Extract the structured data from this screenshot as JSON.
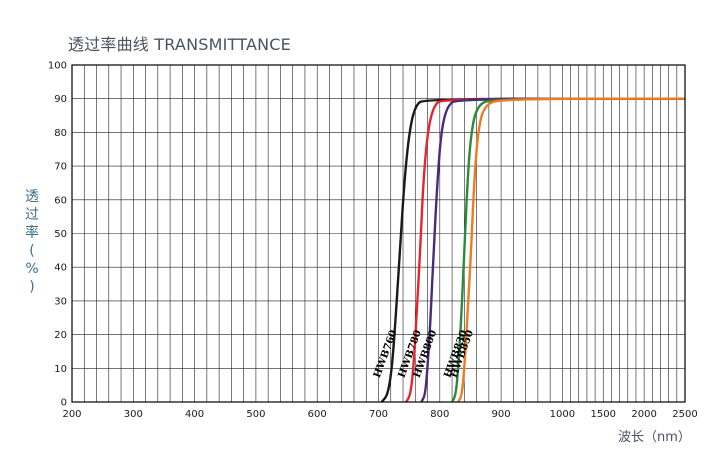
{
  "title": "透过率曲线 TRANSMITTANCE",
  "chart_data": {
    "type": "line",
    "title": "透过率曲线 TRANSMITTANCE",
    "ylabel": "透过率(%)",
    "ylabel_chars": [
      "透",
      "过",
      "率",
      "(",
      "%",
      ")"
    ],
    "xlabel": "波长（nm）",
    "xlim": [
      200,
      2500
    ],
    "ylim": [
      0,
      100
    ],
    "grid": true,
    "x_ticks": [
      "200",
      "300",
      "400",
      "500",
      "600",
      "700",
      "800",
      "900",
      "1000",
      "1500",
      "2000",
      "2500"
    ],
    "y_ticks": [
      "0",
      "10",
      "20",
      "30",
      "40",
      "50",
      "60",
      "70",
      "80",
      "90",
      "100"
    ],
    "series": [
      {
        "name": "HWB760",
        "color": "#1a1a1a",
        "points": [
          [
            705,
            0
          ],
          [
            715,
            2
          ],
          [
            722,
            10
          ],
          [
            728,
            25
          ],
          [
            735,
            45
          ],
          [
            742,
            65
          ],
          [
            750,
            80
          ],
          [
            760,
            88
          ],
          [
            775,
            90
          ],
          [
            2500,
            90
          ]
        ]
      },
      {
        "name": "HWB780",
        "color": "#e8252b",
        "points": [
          [
            745,
            0
          ],
          [
            752,
            2
          ],
          [
            757,
            10
          ],
          [
            762,
            25
          ],
          [
            768,
            45
          ],
          [
            773,
            65
          ],
          [
            780,
            80
          ],
          [
            790,
            88
          ],
          [
            805,
            90
          ],
          [
            2500,
            90
          ]
        ]
      },
      {
        "name": "HWB800",
        "color": "#4a2a7a",
        "points": [
          [
            770,
            0
          ],
          [
            776,
            2
          ],
          [
            780,
            10
          ],
          [
            785,
            25
          ],
          [
            790,
            45
          ],
          [
            796,
            65
          ],
          [
            802,
            80
          ],
          [
            812,
            88
          ],
          [
            830,
            90
          ],
          [
            2500,
            90
          ]
        ]
      },
      {
        "name": "HWB830",
        "color": "#2c8a3a",
        "points": [
          [
            820,
            0
          ],
          [
            826,
            2
          ],
          [
            830,
            10
          ],
          [
            835,
            25
          ],
          [
            840,
            45
          ],
          [
            845,
            65
          ],
          [
            851,
            80
          ],
          [
            861,
            88
          ],
          [
            885,
            90
          ],
          [
            2500,
            90
          ]
        ]
      },
      {
        "name": "HWB850",
        "color": "#f07a20",
        "points": [
          [
            830,
            0
          ],
          [
            836,
            2
          ],
          [
            840,
            10
          ],
          [
            845,
            25
          ],
          [
            851,
            45
          ],
          [
            856,
            65
          ],
          [
            862,
            80
          ],
          [
            872,
            88
          ],
          [
            900,
            90
          ],
          [
            2500,
            90
          ]
        ]
      }
    ]
  }
}
